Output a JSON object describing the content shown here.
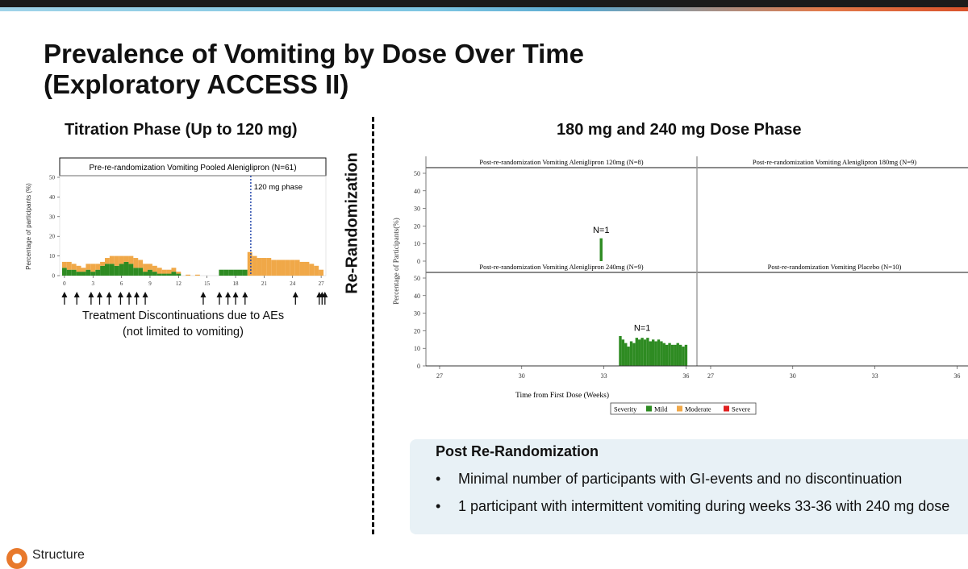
{
  "title_line1": "Prevalence of Vomiting by Dose Over Time",
  "title_line2": "(Exploratory ACCESS II)",
  "left_heading": "Titration Phase (Up to 120 mg)",
  "right_heading": "180 mg and 240 mg Dose Phase",
  "rerandomization_label": "Re-Randomization",
  "arrows_caption_line1": "Treatment Discontinuations due to AEs",
  "arrows_caption_line2": "(not limited to vomiting)",
  "panel": {
    "title": "Post Re-Randomization",
    "bullets": [
      "Minimal number of participants with GI-events and no discontinuation",
      "1 participant with intermittent vomiting during weeks 33-36 with 240 mg dose"
    ],
    "bullet_symbol": "•"
  },
  "brand": "Structure",
  "colors": {
    "mild": "#2e8b22",
    "moderate": "#f0a848",
    "severe": "#e02020"
  },
  "chart_data": [
    {
      "type": "bar",
      "panel_title": "Pre-re-randomization Vomiting Pooled Aleniglipron (N=61)",
      "ylabel": "Percentage of participants (%)",
      "ylim": [
        0,
        50
      ],
      "yticks": [
        0,
        10,
        20,
        30,
        40,
        50
      ],
      "xlim": [
        -0.5,
        27.5
      ],
      "xticks": [
        0,
        3,
        6,
        9,
        12,
        15,
        18,
        21,
        24,
        27
      ],
      "phase_line_x": 19.6,
      "phase_label": "120 mg phase",
      "series": [
        {
          "name": "Mild",
          "x": [
            0,
            0.5,
            1,
            1.5,
            2,
            2.5,
            3,
            3.5,
            4,
            4.5,
            5,
            5.5,
            6,
            6.5,
            7,
            7.5,
            8,
            8.5,
            9,
            9.5,
            10,
            10.5,
            11,
            11.5,
            12,
            16.5,
            17,
            17.5,
            18,
            18.5,
            19
          ],
          "values": [
            4,
            3,
            3,
            2,
            2,
            3,
            2,
            3,
            5,
            6,
            6,
            5,
            6,
            7,
            6,
            4,
            4,
            2,
            3,
            2,
            1,
            1,
            1,
            2,
            1,
            3,
            3,
            3,
            3,
            3,
            3
          ]
        },
        {
          "name": "Moderate",
          "x": [
            0,
            0.5,
            1,
            1.5,
            2,
            2.5,
            3,
            3.5,
            4,
            4.5,
            5,
            5.5,
            6,
            6.5,
            7,
            7.5,
            8,
            8.5,
            9,
            9.5,
            10,
            10.5,
            11,
            11.5,
            12,
            13,
            14,
            19.5,
            20,
            20.5,
            21,
            21.5,
            22,
            22.5,
            23,
            23.5,
            24,
            24.5,
            25,
            25.5,
            26,
            26.5,
            27
          ],
          "values": [
            3,
            4,
            3,
            3,
            2,
            3,
            4,
            3,
            2,
            3,
            4,
            5,
            4,
            3,
            4,
            5,
            4,
            4,
            3,
            3,
            3,
            2,
            2,
            2,
            1,
            0.5,
            0.5,
            12,
            10,
            9,
            9,
            9,
            8,
            8,
            8,
            8,
            8,
            8,
            7,
            7,
            6,
            5,
            3
          ]
        }
      ],
      "discontinuation_weeks": [
        0,
        1.3,
        2.8,
        3.7,
        4.7,
        5.9,
        6.8,
        7.6,
        8.5,
        14.6,
        16.3,
        17.2,
        18.0,
        19.0,
        24.3,
        26.8,
        27.1,
        27.4
      ]
    },
    {
      "type": "bar",
      "ylabel": "Percentage of Participants(%)",
      "xlabel": "Time from First Dose (Weeks)",
      "ylim": [
        0,
        50
      ],
      "yticks": [
        0,
        10,
        20,
        30,
        40,
        50
      ],
      "xlim": [
        26.5,
        36.4
      ],
      "xticks": [
        27,
        30,
        33,
        36
      ],
      "legend": {
        "title": "Severity",
        "items": [
          "Mild",
          "Moderate",
          "Severe"
        ],
        "placement": "bottom"
      },
      "panels": [
        {
          "title": "Post-re-randomization Vomiting Aleniglipron 120mg (N=8)",
          "bars": [
            {
              "x": 32.9,
              "value": 13,
              "severity": "Mild"
            }
          ],
          "annotation": {
            "text": "N=1",
            "x": 32.9,
            "y": 16
          }
        },
        {
          "title": "Post-re-randomization Vomiting Aleniglipron 180mg (N=9)",
          "bars": []
        },
        {
          "title": "Post-re-randomization Vomiting Aleniglipron 240mg (N=9)",
          "bars": [
            {
              "x": 33.6,
              "value": 17,
              "severity": "Mild"
            },
            {
              "x": 33.7,
              "value": 15,
              "severity": "Mild"
            },
            {
              "x": 33.8,
              "value": 13,
              "severity": "Mild"
            },
            {
              "x": 33.9,
              "value": 11,
              "severity": "Mild"
            },
            {
              "x": 34.0,
              "value": 14,
              "severity": "Mild"
            },
            {
              "x": 34.1,
              "value": 13,
              "severity": "Mild"
            },
            {
              "x": 34.2,
              "value": 16,
              "severity": "Mild"
            },
            {
              "x": 34.3,
              "value": 15,
              "severity": "Mild"
            },
            {
              "x": 34.4,
              "value": 16,
              "severity": "Mild"
            },
            {
              "x": 34.5,
              "value": 15,
              "severity": "Mild"
            },
            {
              "x": 34.6,
              "value": 16,
              "severity": "Mild"
            },
            {
              "x": 34.7,
              "value": 14,
              "severity": "Mild"
            },
            {
              "x": 34.8,
              "value": 15,
              "severity": "Mild"
            },
            {
              "x": 34.9,
              "value": 14,
              "severity": "Mild"
            },
            {
              "x": 35.0,
              "value": 15,
              "severity": "Mild"
            },
            {
              "x": 35.1,
              "value": 14,
              "severity": "Mild"
            },
            {
              "x": 35.2,
              "value": 13,
              "severity": "Mild"
            },
            {
              "x": 35.3,
              "value": 12,
              "severity": "Mild"
            },
            {
              "x": 35.4,
              "value": 13,
              "severity": "Mild"
            },
            {
              "x": 35.5,
              "value": 12,
              "severity": "Mild"
            },
            {
              "x": 35.6,
              "value": 12,
              "severity": "Mild"
            },
            {
              "x": 35.7,
              "value": 13,
              "severity": "Mild"
            },
            {
              "x": 35.8,
              "value": 12,
              "severity": "Mild"
            },
            {
              "x": 35.9,
              "value": 11,
              "severity": "Mild"
            },
            {
              "x": 36.0,
              "value": 12,
              "severity": "Mild"
            }
          ],
          "annotation": {
            "text": "N=1",
            "x": 34.4,
            "y": 20
          }
        },
        {
          "title": "Post-re-randomization Vomiting Placebo (N=10)",
          "bars": []
        }
      ]
    }
  ]
}
